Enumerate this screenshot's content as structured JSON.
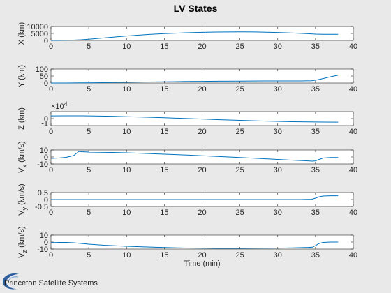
{
  "figure": {
    "title": "LV States",
    "logo_text": "Princeton Satellite Systems"
  },
  "chart_data": [
    {
      "type": "line",
      "ylabel": "X (km)",
      "xlabel": "",
      "xlim": [
        0,
        40
      ],
      "ylim": [
        0,
        10000
      ],
      "xticks": [
        0,
        5,
        10,
        15,
        20,
        25,
        30,
        35,
        40
      ],
      "yticks": [
        0,
        5000,
        10000
      ],
      "ytick_labels": [
        "0",
        "5000",
        "10000"
      ],
      "color": "#0072bd",
      "series": [
        {
          "x": [
            0,
            1,
            2,
            3,
            4,
            5,
            7,
            10,
            13,
            15,
            18,
            20,
            22,
            25,
            27,
            30,
            32,
            34,
            35,
            36,
            37,
            38
          ],
          "y": [
            0,
            0,
            100,
            250,
            500,
            900,
            1800,
            3200,
            4300,
            4900,
            5500,
            5800,
            6000,
            6100,
            6050,
            5700,
            5300,
            4800,
            4500,
            4400,
            4350,
            4350
          ]
        }
      ]
    },
    {
      "type": "line",
      "ylabel": "Y (km)",
      "xlabel": "",
      "xlim": [
        0,
        40
      ],
      "ylim": [
        0,
        100
      ],
      "xticks": [
        0,
        5,
        10,
        15,
        20,
        25,
        30,
        35,
        40
      ],
      "yticks": [
        0,
        50,
        100
      ],
      "ytick_labels": [
        "0",
        "50",
        "100"
      ],
      "color": "#0072bd",
      "series": [
        {
          "x": [
            0,
            2,
            4,
            6,
            8,
            10,
            12,
            15,
            18,
            20,
            22,
            25,
            28,
            30,
            33,
            34.5,
            35,
            36,
            37,
            38
          ],
          "y": [
            0,
            0,
            1,
            2,
            4,
            5,
            7,
            9,
            11,
            12,
            13,
            14,
            15,
            15,
            15,
            16,
            20,
            32,
            45,
            56
          ]
        }
      ]
    },
    {
      "type": "line",
      "ylabel": "Z (km)",
      "xlabel": "",
      "exponent_label": "×10",
      "exponent_power": "4",
      "xlim": [
        0,
        40
      ],
      "ylim": [
        -1.5,
        1.5
      ],
      "xticks": [
        0,
        5,
        10,
        15,
        20,
        25,
        30,
        35,
        40
      ],
      "yticks": [
        -1,
        0
      ],
      "ytick_labels": [
        "-1",
        "0"
      ],
      "color": "#0072bd",
      "series": [
        {
          "x": [
            0,
            2,
            4,
            5,
            8,
            10,
            12,
            15,
            18,
            20,
            22,
            25,
            28,
            30,
            32,
            35,
            36,
            38
          ],
          "y": [
            0.58,
            0.6,
            0.6,
            0.58,
            0.5,
            0.42,
            0.33,
            0.18,
            0.02,
            -0.1,
            -0.22,
            -0.38,
            -0.52,
            -0.6,
            -0.68,
            -0.74,
            -0.75,
            -0.76
          ]
        }
      ]
    },
    {
      "type": "line",
      "ylabel": "V_x (km/s)",
      "xlabel": "",
      "xlim": [
        0,
        40
      ],
      "ylim": [
        -10,
        10
      ],
      "xticks": [
        0,
        5,
        10,
        15,
        20,
        25,
        30,
        35,
        40
      ],
      "yticks": [
        -10,
        0,
        10
      ],
      "ytick_labels": [
        "-10",
        "0",
        "10"
      ],
      "color": "#0072bd",
      "series": [
        {
          "x": [
            0,
            1,
            2,
            3,
            3.7,
            4,
            5,
            8,
            10,
            12,
            15,
            18,
            20,
            22,
            25,
            28,
            30,
            32,
            34,
            34.6,
            35,
            35.5,
            36,
            37,
            38
          ],
          "y": [
            -2,
            -1.5,
            -0.5,
            2,
            8,
            7.5,
            7,
            6.5,
            6,
            5.2,
            4,
            2.8,
            1.8,
            0.8,
            -0.8,
            -2.4,
            -3.5,
            -4.6,
            -5.6,
            -6,
            -5.6,
            -3.5,
            -1.5,
            -0.8,
            -0.8
          ]
        }
      ]
    },
    {
      "type": "line",
      "ylabel": "V_y (km/s)",
      "xlabel": "",
      "xlim": [
        0,
        40
      ],
      "ylim": [
        -0.5,
        0.5
      ],
      "xticks": [
        0,
        5,
        10,
        15,
        20,
        25,
        30,
        35,
        40
      ],
      "yticks": [
        -0.5,
        0,
        0.5
      ],
      "ytick_labels": [
        "-0.5",
        "0",
        "0.5"
      ],
      "color": "#0072bd",
      "series": [
        {
          "x": [
            0,
            5,
            10,
            15,
            20,
            25,
            30,
            33,
            34.5,
            35,
            35.5,
            36,
            37,
            38
          ],
          "y": [
            0,
            0,
            0,
            0,
            0,
            0,
            0,
            0,
            0.02,
            0.1,
            0.2,
            0.25,
            0.27,
            0.27
          ]
        }
      ]
    },
    {
      "type": "line",
      "ylabel": "V_z (km/s)",
      "xlabel": "Time (min)",
      "xlim": [
        0,
        40
      ],
      "ylim": [
        -10,
        10
      ],
      "xticks": [
        0,
        5,
        10,
        15,
        20,
        25,
        30,
        35,
        40
      ],
      "yticks": [
        -10,
        0,
        10
      ],
      "ytick_labels": [
        "-10",
        "0",
        "10"
      ],
      "color": "#0072bd",
      "series": [
        {
          "x": [
            0,
            1,
            2,
            3,
            4,
            5,
            7,
            10,
            12,
            15,
            18,
            20,
            22,
            25,
            28,
            30,
            32,
            34,
            34.6,
            35,
            35.5,
            36,
            37,
            38
          ],
          "y": [
            -1,
            -0.5,
            -0.5,
            -1,
            -2,
            -3,
            -4.5,
            -6,
            -6.8,
            -7.8,
            -8.5,
            -8.8,
            -9,
            -9,
            -8.8,
            -8.6,
            -8.2,
            -7.6,
            -7.2,
            -5,
            -2,
            -0.5,
            0,
            0
          ]
        }
      ]
    }
  ]
}
